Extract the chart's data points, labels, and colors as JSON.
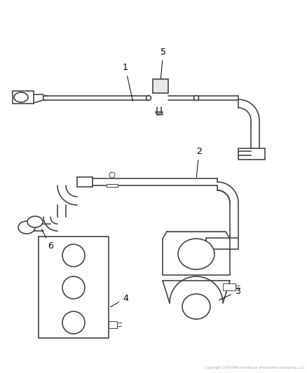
{
  "background_color": "#ffffff",
  "line_color": "#444444",
  "label_color": "#000000",
  "fig_width": 4.38,
  "fig_height": 5.33,
  "dpi": 100,
  "footnote": "Copyright 2004 Mitchell Repair Information Company, LLC"
}
